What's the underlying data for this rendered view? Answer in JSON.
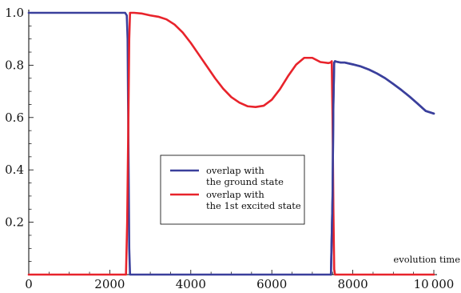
{
  "chart_data": {
    "type": "line",
    "title": "",
    "xlabel": "evolution time",
    "ylabel": "",
    "xlim": [
      0,
      10000
    ],
    "ylim": [
      0,
      1.0
    ],
    "x_ticks": [
      0,
      2000,
      4000,
      6000,
      8000,
      10000
    ],
    "x_tick_labels": [
      "0",
      "2000",
      "4000",
      "6000",
      "8000",
      "10 000"
    ],
    "y_ticks": [
      0.2,
      0.4,
      0.6,
      0.8,
      1.0
    ],
    "y_tick_labels": [
      "0.2",
      "0.4",
      "0.6",
      "0.8",
      "1.0"
    ],
    "grid": false,
    "legend_position": "center",
    "series": [
      {
        "name": "overlap with the ground state",
        "legend_lines": [
          "overlap with",
          "the ground state"
        ],
        "color": "#3a3f9c",
        "x": [
          0,
          2200,
          2380,
          2420,
          2440,
          2460,
          2480,
          2500,
          7400,
          7460,
          7500,
          7520,
          7540,
          7560,
          7600,
          7700,
          7800,
          8000,
          8200,
          8400,
          8600,
          8800,
          9000,
          9200,
          9400,
          9600,
          9800,
          10000
        ],
        "values": [
          1.0,
          1.0,
          1.0,
          0.99,
          0.9,
          0.5,
          0.1,
          0.0,
          0.0,
          0.0,
          0.3,
          0.65,
          0.81,
          0.815,
          0.813,
          0.81,
          0.81,
          0.803,
          0.795,
          0.783,
          0.768,
          0.75,
          0.728,
          0.705,
          0.68,
          0.653,
          0.625,
          0.615
        ]
      },
      {
        "name": "overlap with the 1st excited state",
        "legend_lines": [
          "overlap with",
          "the 1st excited state"
        ],
        "color": "#e8232b",
        "x": [
          0,
          2400,
          2430,
          2460,
          2480,
          2500,
          2600,
          2800,
          3000,
          3200,
          3400,
          3600,
          3800,
          4000,
          4200,
          4400,
          4600,
          4800,
          5000,
          5200,
          5400,
          5600,
          5800,
          6000,
          6200,
          6400,
          6600,
          6800,
          7000,
          7200,
          7300,
          7400,
          7450,
          7480,
          7500,
          7520,
          7540,
          7560,
          10000
        ],
        "values": [
          0.0,
          0.0,
          0.2,
          0.6,
          0.9,
          1.0,
          1.0,
          0.997,
          0.99,
          0.985,
          0.975,
          0.955,
          0.925,
          0.885,
          0.84,
          0.795,
          0.75,
          0.71,
          0.678,
          0.657,
          0.643,
          0.64,
          0.645,
          0.668,
          0.708,
          0.758,
          0.802,
          0.828,
          0.828,
          0.812,
          0.81,
          0.808,
          0.81,
          0.815,
          0.6,
          0.25,
          0.02,
          0.0,
          0.0
        ]
      }
    ]
  }
}
